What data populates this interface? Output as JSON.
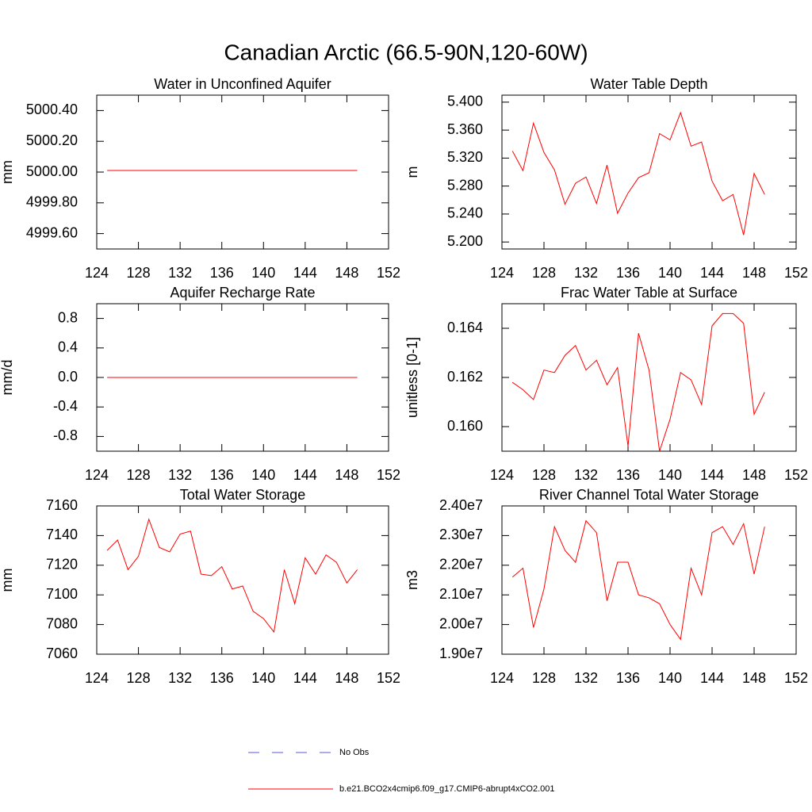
{
  "title": "Canadian Arctic (66.5-90N,120-60W)",
  "legend": [
    {
      "name": "No Obs",
      "color": "#5a5ad0",
      "dashed": true
    },
    {
      "name": "b.e21.BCO2x4cmip6.f09_g17.CMIP6-abrupt4xCO2.001",
      "color": "#ff0000",
      "dashed": false
    }
  ],
  "chart_data": [
    {
      "type": "line",
      "title": "Water in Unconfined Aquifer",
      "ylabel": "mm",
      "x": [
        125,
        126,
        127,
        128,
        129,
        130,
        131,
        132,
        133,
        134,
        135,
        136,
        137,
        138,
        139,
        140,
        141,
        142,
        143,
        144,
        145,
        146,
        147,
        148,
        149
      ],
      "xlim": [
        124,
        152
      ],
      "xticks": [
        124,
        128,
        132,
        136,
        140,
        144,
        148,
        152
      ],
      "ylim": [
        4999.5,
        5000.5
      ],
      "yticks": [
        {
          "value": 5000.4,
          "label": "5000.40"
        },
        {
          "value": 5000.2,
          "label": "5000.20"
        },
        {
          "value": 5000.0,
          "label": "5000.00"
        },
        {
          "value": 4999.8,
          "label": "4999.80"
        },
        {
          "value": 4999.6,
          "label": "4999.60"
        }
      ],
      "series": [
        {
          "color": "#ff0000",
          "values": [
            5000.01,
            5000.01,
            5000.01,
            5000.01,
            5000.01,
            5000.01,
            5000.01,
            5000.01,
            5000.01,
            5000.01,
            5000.01,
            5000.01,
            5000.01,
            5000.01,
            5000.01,
            5000.01,
            5000.01,
            5000.01,
            5000.01,
            5000.01,
            5000.01,
            5000.01,
            5000.01,
            5000.01,
            5000.01
          ]
        }
      ]
    },
    {
      "type": "line",
      "title": "Water Table Depth",
      "ylabel": "m",
      "x": [
        125,
        126,
        127,
        128,
        129,
        130,
        131,
        132,
        133,
        134,
        135,
        136,
        137,
        138,
        139,
        140,
        141,
        142,
        143,
        144,
        145,
        146,
        147,
        148,
        149
      ],
      "xlim": [
        124,
        152
      ],
      "xticks": [
        124,
        128,
        132,
        136,
        140,
        144,
        148,
        152
      ],
      "ylim": [
        5.19,
        5.41
      ],
      "yticks": [
        {
          "value": 5.4,
          "label": "5.400"
        },
        {
          "value": 5.36,
          "label": "5.360"
        },
        {
          "value": 5.32,
          "label": "5.320"
        },
        {
          "value": 5.28,
          "label": "5.280"
        },
        {
          "value": 5.24,
          "label": "5.240"
        },
        {
          "value": 5.2,
          "label": "5.200"
        }
      ],
      "series": [
        {
          "color": "#ff0000",
          "values": [
            5.33,
            5.302,
            5.37,
            5.328,
            5.303,
            5.254,
            5.284,
            5.293,
            5.255,
            5.31,
            5.241,
            5.27,
            5.292,
            5.299,
            5.355,
            5.346,
            5.385,
            5.337,
            5.343,
            5.287,
            5.259,
            5.268,
            5.21,
            5.298,
            5.268
          ]
        }
      ]
    },
    {
      "type": "line",
      "title": "Aquifer Recharge Rate",
      "ylabel": "mm/d",
      "x": [
        125,
        126,
        127,
        128,
        129,
        130,
        131,
        132,
        133,
        134,
        135,
        136,
        137,
        138,
        139,
        140,
        141,
        142,
        143,
        144,
        145,
        146,
        147,
        148,
        149
      ],
      "xlim": [
        124,
        152
      ],
      "xticks": [
        124,
        128,
        132,
        136,
        140,
        144,
        148,
        152
      ],
      "ylim": [
        -1,
        1
      ],
      "yticks": [
        0.8,
        0.4,
        {
          "value": 0,
          "label": "0.0"
        },
        -0.4,
        -0.8
      ],
      "series": [
        {
          "color": "#ff0000",
          "values": [
            0,
            0,
            0,
            0,
            0,
            0,
            0,
            0,
            0,
            0,
            0,
            0,
            0,
            0,
            0,
            0,
            0,
            0,
            0,
            0,
            0,
            0,
            0,
            0,
            0
          ]
        }
      ]
    },
    {
      "type": "line",
      "title": "Frac Water Table at Surface",
      "ylabel": "unitless [0-1]",
      "x": [
        125,
        126,
        127,
        128,
        129,
        130,
        131,
        132,
        133,
        134,
        135,
        136,
        137,
        138,
        139,
        140,
        141,
        142,
        143,
        144,
        145,
        146,
        147,
        148,
        149
      ],
      "xlim": [
        124,
        152
      ],
      "xticks": [
        124,
        128,
        132,
        136,
        140,
        144,
        148,
        152
      ],
      "ylim": [
        0.159,
        0.165
      ],
      "yticks": [
        {
          "value": 0.164,
          "label": "0.164"
        },
        {
          "value": 0.162,
          "label": "0.162"
        },
        {
          "value": 0.16,
          "label": "0.160"
        }
      ],
      "series": [
        {
          "color": "#ff0000",
          "values": [
            0.1618,
            0.1615,
            0.1611,
            0.1623,
            0.1622,
            0.1629,
            0.1633,
            0.1623,
            0.1627,
            0.1617,
            0.1624,
            0.1592,
            0.1638,
            0.1623,
            0.159,
            0.1603,
            0.1622,
            0.1619,
            0.1609,
            0.1641,
            0.1646,
            0.1646,
            0.1642,
            0.1605,
            0.1614
          ]
        }
      ]
    },
    {
      "type": "line",
      "title": "Total Water Storage",
      "ylabel": "mm",
      "x": [
        125,
        126,
        127,
        128,
        129,
        130,
        131,
        132,
        133,
        134,
        135,
        136,
        137,
        138,
        139,
        140,
        141,
        142,
        143,
        144,
        145,
        146,
        147,
        148,
        149
      ],
      "xlim": [
        124,
        152
      ],
      "xticks": [
        124,
        128,
        132,
        136,
        140,
        144,
        148,
        152
      ],
      "ylim": [
        7060,
        7160
      ],
      "yticks": [
        7160,
        7140,
        7120,
        7100,
        7080,
        7060
      ],
      "series": [
        {
          "color": "#ff0000",
          "values": [
            7130,
            7137,
            7117,
            7126,
            7151,
            7132,
            7129,
            7141,
            7143,
            7114,
            7113,
            7119,
            7104,
            7106,
            7089,
            7084,
            7075,
            7117,
            7094,
            7125,
            7114,
            7127,
            7122,
            7108,
            7117
          ]
        }
      ]
    },
    {
      "type": "line",
      "title": "River Channel Total Water Storage",
      "ylabel": "m3",
      "x": [
        125,
        126,
        127,
        128,
        129,
        130,
        131,
        132,
        133,
        134,
        135,
        136,
        137,
        138,
        139,
        140,
        141,
        142,
        143,
        144,
        145,
        146,
        147,
        148,
        149
      ],
      "xlim": [
        124,
        152
      ],
      "xticks": [
        124,
        128,
        132,
        136,
        140,
        144,
        148,
        152
      ],
      "ylim": [
        19000000,
        24000000
      ],
      "yticks": [
        {
          "value": 24000000,
          "label": "2.40e7"
        },
        {
          "value": 23000000,
          "label": "2.30e7"
        },
        {
          "value": 22000000,
          "label": "2.20e7"
        },
        {
          "value": 21000000,
          "label": "2.10e7"
        },
        {
          "value": 20000000,
          "label": "2.00e7"
        },
        {
          "value": 19000000,
          "label": "1.90e7"
        }
      ],
      "series": [
        {
          "color": "#ff0000",
          "values": [
            21600000,
            21900000,
            19900000,
            21200000,
            23300000,
            22500000,
            22100000,
            23500000,
            23100000,
            20800000,
            22100000,
            22100000,
            21000000,
            20900000,
            20700000,
            20000000,
            19500000,
            21900000,
            21000000,
            23100000,
            23300000,
            22700000,
            23400000,
            21700000,
            23300000
          ]
        }
      ]
    }
  ]
}
